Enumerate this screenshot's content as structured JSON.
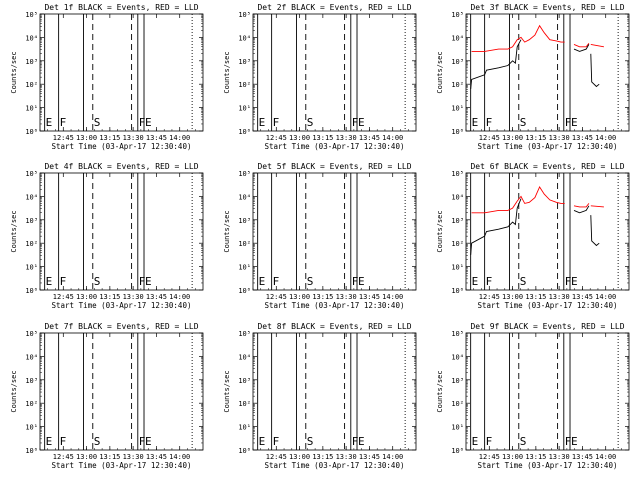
{
  "x_ticks": [
    "12:45",
    "13:00",
    "13:15",
    "13:30",
    "13:45",
    "14:00"
  ],
  "y_ticks": [
    "10⁰",
    "10¹",
    "10²",
    "10³",
    "10⁴",
    "10⁵"
  ],
  "ylabel": "Counts/sec",
  "xlabel": "Start Time (03-Apr-17 12:30:40)",
  "colors": {
    "events": "#000000",
    "lld": "#ff0000"
  },
  "chart_data": [
    {
      "type": "line",
      "detector": "1f",
      "title": "Det 1f BLACK = Events, RED = LLD",
      "xlabel": "Start Time (03-Apr-17 12:30:40)",
      "ylabel": "Counts/sec",
      "x_ticks": [
        "12:45",
        "13:00",
        "13:15",
        "13:30",
        "13:45",
        "14:00"
      ],
      "ylim_log10": [
        0,
        5
      ],
      "log_y": true,
      "markers": [
        {
          "label": "E",
          "time": "12:33",
          "style": "solid"
        },
        {
          "label": "F",
          "time": "12:42",
          "style": "solid"
        },
        {
          "label": "",
          "time": "12:58",
          "style": "solid"
        },
        {
          "label": "S",
          "time": "13:04",
          "style": "dashed"
        },
        {
          "label": "",
          "time": "13:29",
          "style": "dashed"
        },
        {
          "label": "F",
          "time": "13:33",
          "style": "solid"
        },
        {
          "label": "E",
          "time": "13:37",
          "style": "solid"
        },
        {
          "label": "",
          "time": "14:08",
          "style": "dotted"
        }
      ],
      "series": []
    },
    {
      "type": "line",
      "detector": "2f",
      "title": "Det 2f BLACK = Events, RED = LLD",
      "xlabel": "Start Time (03-Apr-17 12:30:40)",
      "ylabel": "Counts/sec",
      "x_ticks": [
        "12:45",
        "13:00",
        "13:15",
        "13:30",
        "13:45",
        "14:00"
      ],
      "ylim_log10": [
        0,
        5
      ],
      "log_y": true,
      "markers": [
        {
          "label": "E",
          "time": "12:33",
          "style": "solid"
        },
        {
          "label": "F",
          "time": "12:42",
          "style": "solid"
        },
        {
          "label": "",
          "time": "12:58",
          "style": "solid"
        },
        {
          "label": "S",
          "time": "13:04",
          "style": "dashed"
        },
        {
          "label": "",
          "time": "13:29",
          "style": "dashed"
        },
        {
          "label": "F",
          "time": "13:33",
          "style": "solid"
        },
        {
          "label": "E",
          "time": "13:37",
          "style": "solid"
        },
        {
          "label": "",
          "time": "14:08",
          "style": "dotted"
        }
      ],
      "series": []
    },
    {
      "type": "line",
      "detector": "3f",
      "title": "Det 3f BLACK = Events, RED = LLD",
      "xlabel": "Start Time (03-Apr-17 12:30:40)",
      "ylabel": "Counts/sec",
      "x_ticks": [
        "12:45",
        "13:00",
        "13:15",
        "13:30",
        "13:45",
        "14:00"
      ],
      "ylim_log10": [
        0,
        5
      ],
      "log_y": true,
      "markers": [
        {
          "label": "E",
          "time": "12:33",
          "style": "solid"
        },
        {
          "label": "F",
          "time": "12:42",
          "style": "solid"
        },
        {
          "label": "",
          "time": "12:58",
          "style": "solid"
        },
        {
          "label": "S",
          "time": "13:04",
          "style": "dashed"
        },
        {
          "label": "",
          "time": "13:29",
          "style": "dashed"
        },
        {
          "label": "F",
          "time": "13:33",
          "style": "solid"
        },
        {
          "label": "E",
          "time": "13:37",
          "style": "solid"
        },
        {
          "label": "",
          "time": "14:08",
          "style": "dotted"
        }
      ],
      "series": [
        {
          "color": "red",
          "segments": [
            [
              [
                12.56,
                3.4
              ],
              [
                12.7,
                3.4
              ],
              [
                12.85,
                3.5
              ],
              [
                12.95,
                3.5
              ],
              [
                13.0,
                3.6
              ],
              [
                13.05,
                3.9
              ],
              [
                13.09,
                4.0
              ],
              [
                13.13,
                3.8
              ],
              [
                13.18,
                3.9
              ],
              [
                13.24,
                4.1
              ],
              [
                13.29,
                4.5
              ],
              [
                13.34,
                4.2
              ],
              [
                13.4,
                3.9
              ],
              [
                13.47,
                3.85
              ],
              [
                13.52,
                3.8
              ],
              [
                13.56,
                3.8
              ]
            ],
            [
              [
                13.66,
                3.7
              ],
              [
                13.72,
                3.6
              ],
              [
                13.79,
                3.6
              ],
              [
                13.82,
                3.75
              ]
            ],
            [
              [
                13.84,
                3.7
              ],
              [
                13.98,
                3.6
              ]
            ]
          ]
        },
        {
          "color": "black",
          "segments": [
            [
              [
                12.55,
                1.8
              ],
              [
                12.56,
                2.2
              ],
              [
                12.7,
                2.4
              ],
              [
                12.72,
                2.6
              ],
              [
                12.85,
                2.7
              ],
              [
                12.95,
                2.8
              ],
              [
                13.0,
                3.0
              ],
              [
                13.03,
                2.9
              ],
              [
                13.05,
                3.6
              ],
              [
                13.09,
                3.9
              ]
            ],
            [
              [
                13.66,
                3.5
              ],
              [
                13.72,
                3.4
              ],
              [
                13.79,
                3.5
              ],
              [
                13.82,
                3.7
              ]
            ],
            [
              [
                13.84,
                3.3
              ],
              [
                13.85,
                2.1
              ],
              [
                13.9,
                1.9
              ],
              [
                13.93,
                2.0
              ]
            ]
          ]
        }
      ]
    },
    {
      "type": "line",
      "detector": "4f",
      "title": "Det 4f BLACK = Events, RED = LLD",
      "xlabel": "Start Time (03-Apr-17 12:30:40)",
      "ylabel": "Counts/sec",
      "x_ticks": [
        "12:45",
        "13:00",
        "13:15",
        "13:30",
        "13:45",
        "14:00"
      ],
      "ylim_log10": [
        0,
        5
      ],
      "log_y": true,
      "markers": [
        {
          "label": "E",
          "time": "12:33",
          "style": "solid"
        },
        {
          "label": "F",
          "time": "12:42",
          "style": "solid"
        },
        {
          "label": "",
          "time": "12:58",
          "style": "solid"
        },
        {
          "label": "S",
          "time": "13:04",
          "style": "dashed"
        },
        {
          "label": "",
          "time": "13:29",
          "style": "dashed"
        },
        {
          "label": "F",
          "time": "13:33",
          "style": "solid"
        },
        {
          "label": "E",
          "time": "13:37",
          "style": "solid"
        },
        {
          "label": "",
          "time": "14:08",
          "style": "dotted"
        }
      ],
      "series": []
    },
    {
      "type": "line",
      "detector": "5f",
      "title": "Det 5f BLACK = Events, RED = LLD",
      "xlabel": "Start Time (03-Apr-17 12:30:40)",
      "ylabel": "Counts/sec",
      "x_ticks": [
        "12:45",
        "13:00",
        "13:15",
        "13:30",
        "13:45",
        "14:00"
      ],
      "ylim_log10": [
        0,
        5
      ],
      "log_y": true,
      "markers": [
        {
          "label": "E",
          "time": "12:33",
          "style": "solid"
        },
        {
          "label": "F",
          "time": "12:42",
          "style": "solid"
        },
        {
          "label": "",
          "time": "12:58",
          "style": "solid"
        },
        {
          "label": "S",
          "time": "13:04",
          "style": "dashed"
        },
        {
          "label": "",
          "time": "13:29",
          "style": "dashed"
        },
        {
          "label": "F",
          "time": "13:33",
          "style": "solid"
        },
        {
          "label": "E",
          "time": "13:37",
          "style": "solid"
        },
        {
          "label": "",
          "time": "14:08",
          "style": "dotted"
        }
      ],
      "series": []
    },
    {
      "type": "line",
      "detector": "6f",
      "title": "Det 6f BLACK = Events, RED = LLD",
      "xlabel": "Start Time (03-Apr-17 12:30:40)",
      "ylabel": "Counts/sec",
      "x_ticks": [
        "12:45",
        "13:00",
        "13:15",
        "13:30",
        "13:45",
        "14:00"
      ],
      "ylim_log10": [
        0,
        5
      ],
      "log_y": true,
      "markers": [
        {
          "label": "E",
          "time": "12:33",
          "style": "solid"
        },
        {
          "label": "F",
          "time": "12:42",
          "style": "solid"
        },
        {
          "label": "",
          "time": "12:58",
          "style": "solid"
        },
        {
          "label": "S",
          "time": "13:04",
          "style": "dashed"
        },
        {
          "label": "",
          "time": "13:29",
          "style": "dashed"
        },
        {
          "label": "F",
          "time": "13:33",
          "style": "solid"
        },
        {
          "label": "E",
          "time": "13:37",
          "style": "solid"
        },
        {
          "label": "",
          "time": "14:08",
          "style": "dotted"
        }
      ],
      "series": [
        {
          "color": "red",
          "segments": [
            [
              [
                12.56,
                3.3
              ],
              [
                12.7,
                3.3
              ],
              [
                12.85,
                3.4
              ],
              [
                12.95,
                3.4
              ],
              [
                13.0,
                3.5
              ],
              [
                13.05,
                3.8
              ],
              [
                13.09,
                4.0
              ],
              [
                13.13,
                3.7
              ],
              [
                13.18,
                3.75
              ],
              [
                13.24,
                3.95
              ],
              [
                13.29,
                4.4
              ],
              [
                13.34,
                4.1
              ],
              [
                13.4,
                3.85
              ],
              [
                13.47,
                3.75
              ],
              [
                13.52,
                3.7
              ],
              [
                13.56,
                3.7
              ]
            ],
            [
              [
                13.66,
                3.6
              ],
              [
                13.72,
                3.55
              ],
              [
                13.79,
                3.55
              ],
              [
                13.82,
                3.7
              ]
            ],
            [
              [
                13.84,
                3.6
              ],
              [
                13.98,
                3.55
              ]
            ]
          ]
        },
        {
          "color": "black",
          "segments": [
            [
              [
                12.55,
                1.5
              ],
              [
                12.56,
                2.0
              ],
              [
                12.7,
                2.3
              ],
              [
                12.72,
                2.5
              ],
              [
                12.85,
                2.6
              ],
              [
                12.95,
                2.7
              ],
              [
                13.0,
                2.9
              ],
              [
                13.03,
                2.8
              ],
              [
                13.05,
                3.5
              ],
              [
                13.09,
                3.9
              ]
            ],
            [
              [
                13.66,
                3.4
              ],
              [
                13.72,
                3.3
              ],
              [
                13.79,
                3.4
              ],
              [
                13.82,
                3.6
              ]
            ],
            [
              [
                13.84,
                3.2
              ],
              [
                13.85,
                2.1
              ],
              [
                13.9,
                1.9
              ],
              [
                13.93,
                2.0
              ]
            ]
          ]
        }
      ]
    },
    {
      "type": "line",
      "detector": "7f",
      "title": "Det 7f BLACK = Events, RED = LLD",
      "xlabel": "Start Time (03-Apr-17 12:30:40)",
      "ylabel": "Counts/sec",
      "x_ticks": [
        "12:45",
        "13:00",
        "13:15",
        "13:30",
        "13:45",
        "14:00"
      ],
      "ylim_log10": [
        0,
        5
      ],
      "log_y": true,
      "markers": [
        {
          "label": "E",
          "time": "12:33",
          "style": "solid"
        },
        {
          "label": "F",
          "time": "12:42",
          "style": "solid"
        },
        {
          "label": "",
          "time": "12:58",
          "style": "solid"
        },
        {
          "label": "S",
          "time": "13:04",
          "style": "dashed"
        },
        {
          "label": "",
          "time": "13:29",
          "style": "dashed"
        },
        {
          "label": "F",
          "time": "13:33",
          "style": "solid"
        },
        {
          "label": "E",
          "time": "13:37",
          "style": "solid"
        },
        {
          "label": "",
          "time": "14:08",
          "style": "dotted"
        }
      ],
      "series": []
    },
    {
      "type": "line",
      "detector": "8f",
      "title": "Det 8f BLACK = Events, RED = LLD",
      "xlabel": "Start Time (03-Apr-17 12:30:40)",
      "ylabel": "Counts/sec",
      "x_ticks": [
        "12:45",
        "13:00",
        "13:15",
        "13:30",
        "13:45",
        "14:00"
      ],
      "ylim_log10": [
        0,
        5
      ],
      "log_y": true,
      "markers": [
        {
          "label": "E",
          "time": "12:33",
          "style": "solid"
        },
        {
          "label": "F",
          "time": "12:42",
          "style": "solid"
        },
        {
          "label": "",
          "time": "12:58",
          "style": "solid"
        },
        {
          "label": "S",
          "time": "13:04",
          "style": "dashed"
        },
        {
          "label": "",
          "time": "13:29",
          "style": "dashed"
        },
        {
          "label": "F",
          "time": "13:33",
          "style": "solid"
        },
        {
          "label": "E",
          "time": "13:37",
          "style": "solid"
        },
        {
          "label": "",
          "time": "14:08",
          "style": "dotted"
        }
      ],
      "series": []
    },
    {
      "type": "line",
      "detector": "9f",
      "title": "Det 9f BLACK = Events, RED = LLD",
      "xlabel": "Start Time (03-Apr-17 12:30:40)",
      "ylabel": "Counts/sec",
      "x_ticks": [
        "12:45",
        "13:00",
        "13:15",
        "13:30",
        "13:45",
        "14:00"
      ],
      "ylim_log10": [
        0,
        5
      ],
      "log_y": true,
      "markers": [
        {
          "label": "E",
          "time": "12:33",
          "style": "solid"
        },
        {
          "label": "F",
          "time": "12:42",
          "style": "solid"
        },
        {
          "label": "",
          "time": "12:58",
          "style": "solid"
        },
        {
          "label": "S",
          "time": "13:04",
          "style": "dashed"
        },
        {
          "label": "",
          "time": "13:29",
          "style": "dashed"
        },
        {
          "label": "F",
          "time": "13:33",
          "style": "solid"
        },
        {
          "label": "E",
          "time": "13:37",
          "style": "solid"
        },
        {
          "label": "",
          "time": "14:08",
          "style": "dotted"
        }
      ],
      "series": []
    }
  ]
}
